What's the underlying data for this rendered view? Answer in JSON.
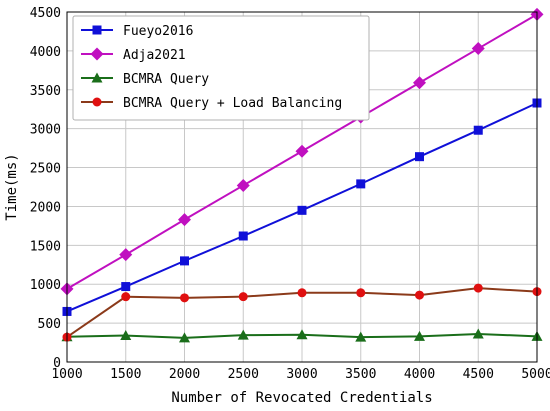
{
  "chart_data": {
    "type": "line",
    "xlabel": "Number of Revocated Credentials",
    "ylabel": "Time(ms)",
    "x": [
      1000,
      1500,
      2000,
      2500,
      3000,
      3500,
      4000,
      4500,
      5000
    ],
    "xlim": [
      1000,
      5000
    ],
    "ylim": [
      0,
      4500
    ],
    "xticks": [
      1000,
      1500,
      2000,
      2500,
      3000,
      3500,
      4000,
      4500,
      5000
    ],
    "yticks": [
      0,
      500,
      1000,
      1500,
      2000,
      2500,
      3000,
      3500,
      4000,
      4500
    ],
    "grid": true,
    "legend_position": "top-left",
    "series": [
      {
        "name": "Fueyo2016",
        "color": "#1010d8",
        "marker": "square",
        "values": [
          650,
          970,
          1300,
          1620,
          1950,
          2290,
          2640,
          2980,
          3330
        ]
      },
      {
        "name": "Adja2021",
        "color": "#c010c0",
        "marker": "diamond",
        "values": [
          940,
          1380,
          1830,
          2270,
          2710,
          3150,
          3590,
          4030,
          4470
        ]
      },
      {
        "name": "BCMRA Query",
        "color": "#1a6e1a",
        "marker": "triangle",
        "values": [
          325,
          340,
          310,
          345,
          350,
          320,
          330,
          360,
          330
        ]
      },
      {
        "name": "BCMRA Query + Load Balancing",
        "color": "#e01010",
        "line_color": "#8b3a1a",
        "marker": "circle",
        "values": [
          320,
          840,
          825,
          840,
          890,
          890,
          860,
          950,
          905
        ]
      }
    ]
  }
}
